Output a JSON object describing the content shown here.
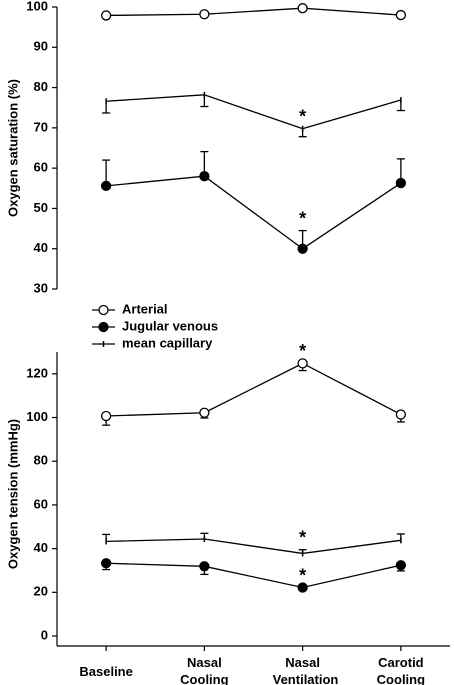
{
  "chart_data": [
    {
      "type": "line",
      "ylabel": "Oxygen saturation (%)",
      "categories": [
        "Baseline",
        "Nasal Cooling",
        "Nasal Ventilation",
        "Carotid Cooling"
      ],
      "ylim": [
        30,
        100
      ],
      "yticks": [
        30,
        40,
        50,
        60,
        70,
        80,
        90,
        100
      ],
      "legend": "bottom-left",
      "series": [
        {
          "name": "Arterial",
          "color": "#000000",
          "marker": "open-circle",
          "values": [
            97.9,
            98.2,
            99.7,
            98.0
          ],
          "errors": [
            0.3,
            0.3,
            0.2,
            0.3
          ],
          "error_direction": "down"
        },
        {
          "name": "Jugular venous",
          "color": "#000000",
          "marker": "filled-circle",
          "values": [
            55.6,
            58.0,
            40.0,
            56.3
          ],
          "errors": [
            6.4,
            6.1,
            4.5,
            6.0
          ],
          "error_direction": "up"
        },
        {
          "name": "mean capillary",
          "color": "#000000",
          "marker": "tick",
          "values": [
            76.6,
            78.2,
            69.8,
            76.9
          ],
          "errors": [
            2.9,
            2.9,
            2.0,
            2.6
          ],
          "error_direction": "down"
        }
      ],
      "annotations": [
        {
          "text": "*",
          "category": 2,
          "series": 2
        },
        {
          "text": "*",
          "category": 2,
          "series": 1
        }
      ]
    },
    {
      "type": "line",
      "ylabel": "Oxygen tension (mmHg)",
      "categories": [
        "Baseline",
        "Nasal Cooling",
        "Nasal Ventilation",
        "Carotid Cooling"
      ],
      "ylim": [
        0,
        130
      ],
      "yticks": [
        0,
        20,
        40,
        60,
        80,
        100,
        120
      ],
      "series": [
        {
          "name": "Arterial",
          "color": "#000000",
          "marker": "open-circle",
          "values": [
            100.7,
            102.2,
            124.8,
            101.4
          ],
          "errors": [
            4.2,
            2.4,
            3.3,
            3.4
          ],
          "error_direction": "down"
        },
        {
          "name": "Jugular venous",
          "color": "#000000",
          "marker": "filled-circle",
          "values": [
            33.3,
            31.9,
            22.2,
            32.4
          ],
          "errors": [
            2.9,
            3.7,
            1.2,
            2.6
          ],
          "error_direction": "down"
        },
        {
          "name": "mean capillary",
          "color": "#000000",
          "marker": "tick",
          "values": [
            43.3,
            44.4,
            37.8,
            43.8
          ],
          "errors": [
            3.2,
            2.6,
            1.7,
            2.9
          ],
          "error_direction": "up"
        }
      ],
      "annotations": [
        {
          "text": "*",
          "category": 2,
          "series": 0
        },
        {
          "text": "*",
          "category": 2,
          "series": 2
        },
        {
          "text": "*",
          "category": 2,
          "series": 1
        }
      ]
    }
  ]
}
